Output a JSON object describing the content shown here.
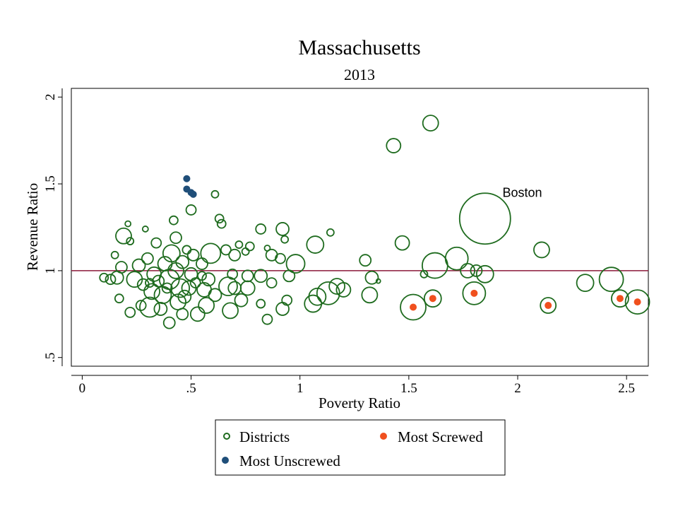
{
  "chart_data": {
    "type": "scatter",
    "title": "Massachusetts",
    "subtitle": "2013",
    "xlabel": "Poverty Ratio",
    "ylabel": "Revenue Ratio",
    "xlim": [
      -0.05,
      2.6
    ],
    "ylim": [
      0.45,
      2.05
    ],
    "xticks": [
      {
        "value": 0,
        "label": "0"
      },
      {
        "value": 0.5,
        "label": ".5"
      },
      {
        "value": 1,
        "label": "1"
      },
      {
        "value": 1.5,
        "label": "1.5"
      },
      {
        "value": 2,
        "label": "2"
      },
      {
        "value": 2.5,
        "label": "2.5"
      }
    ],
    "yticks": [
      {
        "value": 0.5,
        "label": ".5"
      },
      {
        "value": 1,
        "label": "1"
      },
      {
        "value": 1.5,
        "label": "1.5"
      },
      {
        "value": 2,
        "label": "2"
      }
    ],
    "reference_line": {
      "y": 1.0,
      "color": "#8b1a3a"
    },
    "annotations": [
      {
        "text": "Boston",
        "x": 1.93,
        "y": 1.45
      }
    ],
    "legend": {
      "placement": "bottom",
      "items": [
        {
          "label": "Districts",
          "marker": "hollow-circle",
          "color": "#1e6b1e"
        },
        {
          "label": "Most Screwed",
          "marker": "filled-circle",
          "color": "#f0501e"
        },
        {
          "label": "Most Unscrewed",
          "marker": "filled-circle",
          "color": "#1f4e79"
        }
      ]
    },
    "series": [
      {
        "name": "Districts",
        "color": "#1e6b1e",
        "marker": "hollow-circle",
        "points": [
          [
            1.85,
            1.3,
            36
          ],
          [
            1.72,
            1.07,
            16
          ],
          [
            1.62,
            1.03,
            18
          ],
          [
            1.6,
            1.85,
            11
          ],
          [
            1.43,
            1.72,
            10
          ],
          [
            1.47,
            1.16,
            10
          ],
          [
            2.11,
            1.12,
            11
          ],
          [
            1.3,
            1.06,
            8
          ],
          [
            1.33,
            0.96,
            9
          ],
          [
            1.36,
            0.94,
            3
          ],
          [
            1.57,
            0.98,
            5
          ],
          [
            1.77,
            1.0,
            10
          ],
          [
            1.81,
            1.0,
            8
          ],
          [
            1.85,
            0.98,
            12
          ],
          [
            1.52,
            0.79,
            18
          ],
          [
            1.61,
            0.84,
            12
          ],
          [
            1.8,
            0.87,
            16
          ],
          [
            2.14,
            0.8,
            11
          ],
          [
            2.31,
            0.93,
            12
          ],
          [
            2.43,
            0.95,
            17
          ],
          [
            2.47,
            0.84,
            12
          ],
          [
            2.55,
            0.82,
            17
          ],
          [
            1.32,
            0.86,
            11
          ],
          [
            1.13,
            0.87,
            16
          ],
          [
            1.17,
            0.91,
            11
          ],
          [
            1.2,
            0.89,
            10
          ],
          [
            1.08,
            0.85,
            12
          ],
          [
            1.06,
            0.81,
            12
          ],
          [
            1.07,
            1.15,
            12
          ],
          [
            1.14,
            1.22,
            5
          ],
          [
            0.98,
            1.04,
            13
          ],
          [
            0.92,
            1.24,
            9
          ],
          [
            0.93,
            1.18,
            5
          ],
          [
            0.95,
            0.97,
            8
          ],
          [
            0.94,
            0.83,
            7
          ],
          [
            0.92,
            0.78,
            9
          ],
          [
            0.91,
            1.07,
            7
          ],
          [
            0.87,
            1.09,
            8
          ],
          [
            0.85,
            1.13,
            4
          ],
          [
            0.87,
            0.93,
            7
          ],
          [
            0.82,
            1.24,
            7
          ],
          [
            0.82,
            0.97,
            9
          ],
          [
            0.82,
            0.81,
            6
          ],
          [
            0.85,
            0.72,
            7
          ],
          [
            0.77,
            1.14,
            6
          ],
          [
            0.75,
            1.11,
            5
          ],
          [
            0.76,
            0.97,
            8
          ],
          [
            0.76,
            0.9,
            10
          ],
          [
            0.73,
            0.83,
            9
          ],
          [
            0.72,
            1.15,
            5
          ],
          [
            0.7,
            1.09,
            8
          ],
          [
            0.69,
            0.98,
            7
          ],
          [
            0.67,
            0.91,
            13
          ],
          [
            0.68,
            0.77,
            11
          ],
          [
            0.66,
            1.12,
            7
          ],
          [
            0.64,
            1.27,
            6
          ],
          [
            0.63,
            1.3,
            6
          ],
          [
            0.61,
            1.44,
            5
          ],
          [
            0.59,
            1.1,
            14
          ],
          [
            0.58,
            0.95,
            9
          ],
          [
            0.56,
            0.89,
            10
          ],
          [
            0.57,
            0.8,
            11
          ],
          [
            0.55,
            1.04,
            8
          ],
          [
            0.53,
            0.75,
            10
          ],
          [
            0.5,
            1.35,
            7
          ],
          [
            0.51,
            1.09,
            8
          ],
          [
            0.5,
            0.98,
            9
          ],
          [
            0.49,
            0.9,
            10
          ],
          [
            0.48,
            1.12,
            6
          ],
          [
            0.46,
            1.05,
            9
          ],
          [
            0.45,
            0.9,
            13
          ],
          [
            0.44,
            0.82,
            11
          ],
          [
            0.43,
            1.19,
            8
          ],
          [
            0.42,
            1.29,
            6
          ],
          [
            0.41,
            1.1,
            12
          ],
          [
            0.4,
            0.95,
            14
          ],
          [
            0.4,
            0.7,
            8
          ],
          [
            0.38,
            1.04,
            10
          ],
          [
            0.37,
            0.86,
            12
          ],
          [
            0.36,
            0.78,
            9
          ],
          [
            0.34,
            1.16,
            7
          ],
          [
            0.33,
            0.98,
            10
          ],
          [
            0.32,
            0.88,
            11
          ],
          [
            0.31,
            0.79,
            14
          ],
          [
            0.3,
            1.07,
            8
          ],
          [
            0.29,
            1.24,
            4
          ],
          [
            0.28,
            0.92,
            8
          ],
          [
            0.27,
            0.8,
            7
          ],
          [
            0.26,
            1.03,
            9
          ],
          [
            0.24,
            0.95,
            11
          ],
          [
            0.22,
            0.76,
            7
          ],
          [
            0.22,
            1.17,
            5
          ],
          [
            0.21,
            1.27,
            4
          ],
          [
            0.19,
            1.2,
            11
          ],
          [
            0.18,
            1.02,
            8
          ],
          [
            0.17,
            0.84,
            6
          ],
          [
            0.16,
            0.96,
            9
          ],
          [
            0.15,
            1.09,
            5
          ],
          [
            0.13,
            0.95,
            7
          ],
          [
            0.1,
            0.96,
            6
          ],
          [
            0.35,
            0.94,
            8
          ],
          [
            0.52,
            0.93,
            7
          ],
          [
            0.61,
            0.86,
            9
          ],
          [
            0.7,
            0.9,
            9
          ],
          [
            0.46,
            0.75,
            8
          ],
          [
            0.39,
            0.9,
            7
          ],
          [
            0.31,
            0.93,
            6
          ],
          [
            0.47,
            0.85,
            9
          ],
          [
            0.55,
            0.97,
            6
          ],
          [
            0.43,
            1.0,
            11
          ]
        ]
      },
      {
        "name": "Most Screwed",
        "color": "#f0501e",
        "marker": "filled-circle",
        "points": [
          [
            1.52,
            0.79
          ],
          [
            1.61,
            0.84
          ],
          [
            1.8,
            0.87
          ],
          [
            2.14,
            0.8
          ],
          [
            2.47,
            0.84
          ],
          [
            2.55,
            0.82
          ]
        ]
      },
      {
        "name": "Most Unscrewed",
        "color": "#1f4e79",
        "marker": "filled-circle",
        "points": [
          [
            0.48,
            1.53
          ],
          [
            0.48,
            1.47
          ],
          [
            0.5,
            1.45
          ],
          [
            0.51,
            1.44
          ]
        ]
      }
    ]
  }
}
